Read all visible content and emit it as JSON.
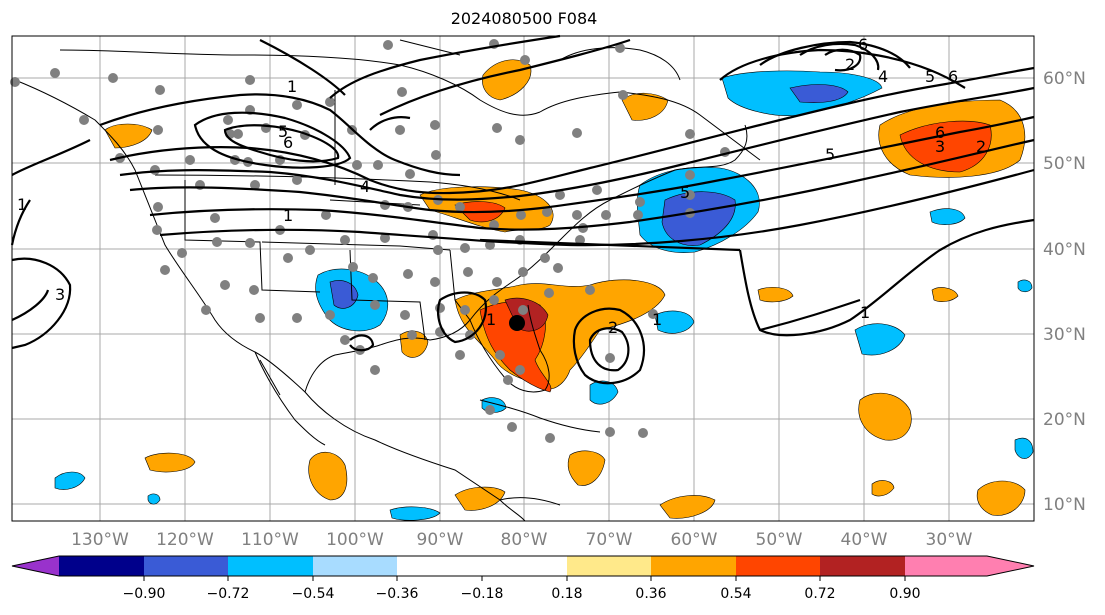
{
  "title": "2024080500 F084",
  "map": {
    "lat_labels": [
      "60°N",
      "50°N",
      "40°N",
      "30°N",
      "20°N",
      "10°N"
    ],
    "lon_labels": [
      "130°W",
      "120°W",
      "110°W",
      "100°W",
      "90°W",
      "80°W",
      "70°W",
      "60°W",
      "50°W",
      "40°W",
      "30°W"
    ],
    "contour_labels": [
      "1",
      "5",
      "6",
      "4",
      "1",
      "1",
      "3",
      "2",
      "1",
      "2",
      "4",
      "5",
      "6",
      "6",
      "3",
      "2",
      "5",
      "1",
      "1",
      "5",
      "6"
    ]
  },
  "colorbar": {
    "colors": [
      "#9932cc",
      "#00008b",
      "#3a5bd6",
      "#00bfff",
      "#a8dcff",
      "#ffffff",
      "#ffe98a",
      "#ffa500",
      "#ff4500",
      "#b22222",
      "#ff7fb0"
    ],
    "tick_labels": [
      "−0.90",
      "−0.72",
      "−0.54",
      "−0.36",
      "−0.18",
      "0.18",
      "0.36",
      "0.54",
      "0.72",
      "0.90"
    ]
  },
  "legend": {
    "orange": "#ffa500",
    "red": "#ff4500",
    "darkred": "#b22222",
    "lightblue": "#00bfff",
    "blue": "#3a5bd6"
  }
}
